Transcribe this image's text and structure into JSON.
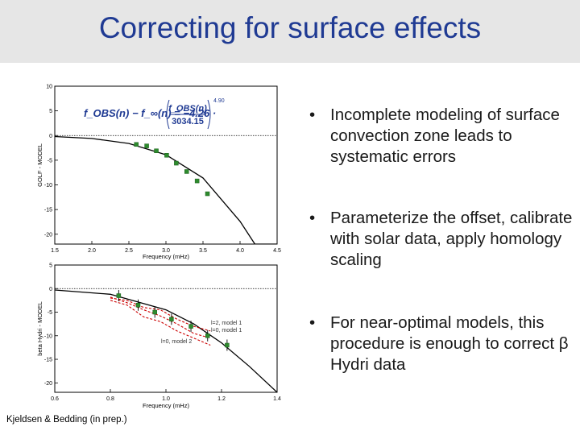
{
  "slide": {
    "title": "Correcting for surface effects",
    "bullets": [
      "Incomplete modeling of surface convection zone leads to systematic errors",
      "Parameterize the offset, calibrate with solar data, apply homology scaling",
      "For near-optimal models, this procedure is enough to correct β Hydri data"
    ],
    "credit": "Kjeldsen & Bedding (in prep.)",
    "colors": {
      "title": "#1f3a93",
      "title_bar": "#e6e6e6",
      "points": "#2e8b2e",
      "model_curves": "#cc0000"
    }
  },
  "chart_data": [
    {
      "type": "scatter",
      "xlabel": "Frequency (mHz)",
      "ylabel": "GOLF - MODEL",
      "xlim": [
        1.5,
        4.5
      ],
      "ylim": [
        -22,
        10
      ],
      "xticks": [
        "1.5",
        "2.0",
        "2.5",
        "3.0",
        "3.5",
        "4.0",
        "4.5"
      ],
      "yticks": [
        "10",
        "5",
        "0",
        "-5",
        "-10",
        "-15",
        "-20"
      ],
      "reference_line_y": 0,
      "equation": {
        "lhs": "f_OBS(n) − f_∞(n) = −4.26 ·",
        "numerator": "f_OBS(n)",
        "denominator": "3034.15",
        "exponent": "4.90"
      },
      "series": [
        {
          "style": "points",
          "x": [
            2.6,
            2.74,
            2.87,
            3.01,
            3.14,
            3.28,
            3.42,
            3.56
          ],
          "y": [
            -1.8,
            -2.1,
            -3.1,
            -4.0,
            -5.6,
            -7.3,
            -9.2,
            -11.8
          ]
        },
        {
          "style": "fit-curve",
          "x": [
            1.5,
            2.0,
            2.5,
            3.0,
            3.5,
            4.0,
            4.2,
            4.5
          ],
          "y": [
            -0.2,
            -0.6,
            -1.6,
            -3.9,
            -8.6,
            -17.4,
            -22,
            -22
          ]
        }
      ]
    },
    {
      "type": "scatter",
      "xlabel": "Frequency (mHz)",
      "ylabel": "beta Hydri - MODEL",
      "xlim": [
        0.6,
        1.4
      ],
      "ylim": [
        -22,
        5
      ],
      "xticks": [
        "0.6",
        "0.8",
        "1.0",
        "1.2",
        "1.4"
      ],
      "yticks": [
        "5",
        "0",
        "-5",
        "-10",
        "-15",
        "-20"
      ],
      "reference_line_y": 0,
      "annotations": [
        "l=2, model 1",
        "l=0, model 1",
        "l=0, model 2"
      ],
      "series": [
        {
          "style": "points",
          "x": [
            0.83,
            0.9,
            0.96,
            1.02,
            1.09,
            1.15,
            1.22
          ],
          "y": [
            -1.5,
            -3.5,
            -5.0,
            -6.5,
            -8.0,
            -10.0,
            -12.0
          ]
        },
        {
          "style": "fit-curve",
          "x": [
            0.6,
            0.8,
            1.0,
            1.1,
            1.2,
            1.3,
            1.4
          ],
          "y": [
            -0.3,
            -1.2,
            -4.5,
            -7.5,
            -11.5,
            -16.5,
            -22
          ]
        },
        {
          "name": "l=2, model 1",
          "style": "model-dashed",
          "x": [
            0.8,
            0.86,
            0.92,
            0.98,
            1.04,
            1.1,
            1.16
          ],
          "y": [
            -2.0,
            -2.5,
            -4.0,
            -4.5,
            -6.5,
            -8.0,
            -9.0
          ]
        },
        {
          "name": "l=0, model 1",
          "style": "model-dashed",
          "x": [
            0.8,
            0.86,
            0.92,
            0.98,
            1.04,
            1.1,
            1.16
          ],
          "y": [
            -1.8,
            -3.0,
            -4.5,
            -5.8,
            -7.5,
            -9.5,
            -10.5
          ]
        },
        {
          "name": "l=0, model 2",
          "style": "model-dashed",
          "x": [
            0.8,
            0.86,
            0.92,
            0.98,
            1.04,
            1.1,
            1.16
          ],
          "y": [
            -2.5,
            -3.5,
            -6.0,
            -7.0,
            -9.0,
            -10.5,
            -12.0
          ]
        }
      ]
    }
  ]
}
